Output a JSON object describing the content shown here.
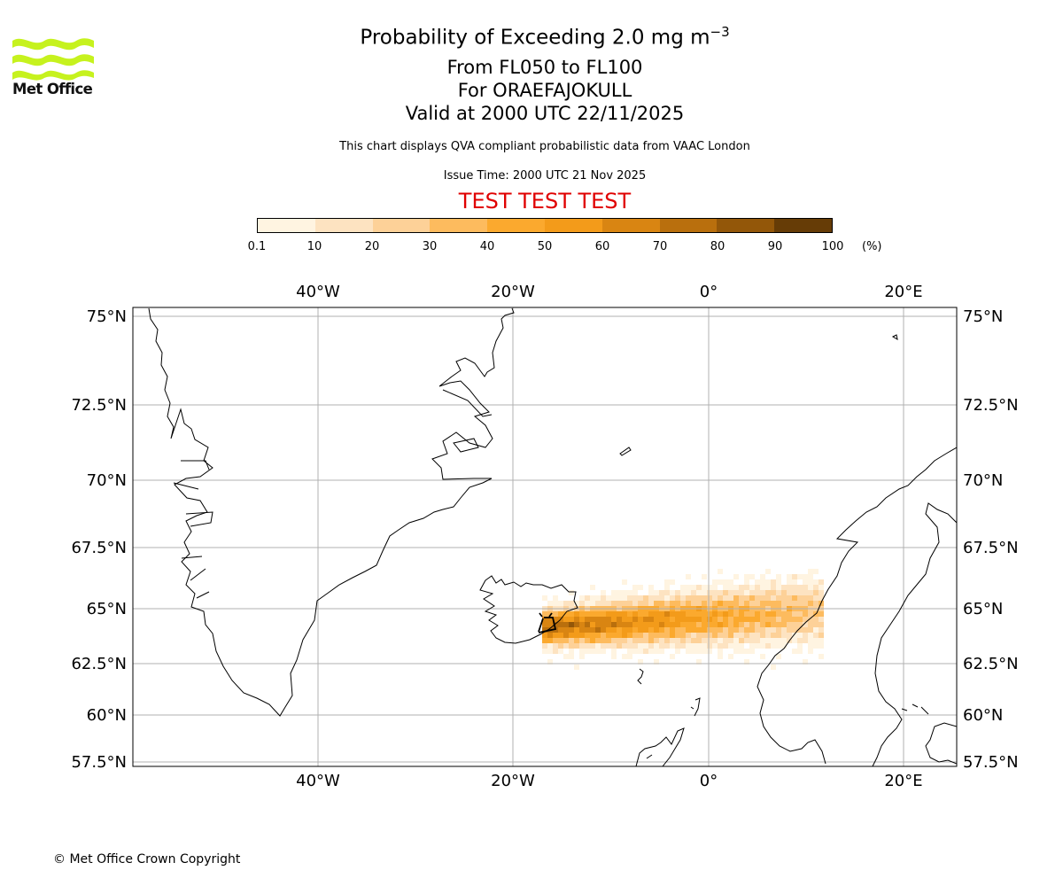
{
  "logo": {
    "text": "Met Office",
    "color": "#c6f21e"
  },
  "title": {
    "main_prefix": "Probability of Exceeding 2.0 mg m",
    "main_exponent": "−3",
    "line2": "From FL050 to FL100",
    "line3": "For ORAEFAJOKULL",
    "line4": "Valid at 2000 UTC 22/11/2025",
    "description": "This chart displays QVA compliant probabilistic data from VAAC London",
    "issue_time": "Issue Time: 2000 UTC 21 Nov 2025",
    "test_banner": "TEST TEST TEST",
    "test_color": "#e00000"
  },
  "colorbar": {
    "ticks": [
      "0.1",
      "10",
      "20",
      "30",
      "40",
      "50",
      "60",
      "70",
      "80",
      "90",
      "100"
    ],
    "unit": "(%)",
    "colors": [
      "#fff4e1",
      "#fde3c1",
      "#fdd198",
      "#fdbb5e",
      "#fba92e",
      "#f39b1a",
      "#d98512",
      "#b96f0d",
      "#935709",
      "#663c06"
    ]
  },
  "map": {
    "lon_labels": [
      "40°W",
      "20°W",
      "0°",
      "20°E"
    ],
    "lat_labels": [
      "75°N",
      "72.5°N",
      "70°N",
      "67.5°N",
      "65°N",
      "62.5°N",
      "60°N",
      "57.5°N"
    ],
    "volcano": "ORAEFAJOKULL",
    "plume_color_scale": "probability (%)",
    "gridline_color": "#b0b0b0"
  },
  "footer": {
    "copyright": "© Met Office Crown Copyright"
  }
}
